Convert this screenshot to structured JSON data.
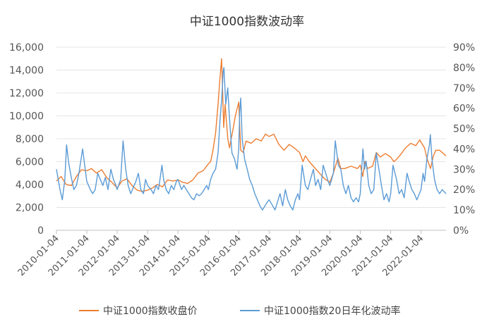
{
  "chart_data": {
    "type": "line",
    "title": "中证1000指数波动率",
    "x_ticks": [
      "2010-01-04",
      "2011-01-04",
      "2012-01-04",
      "2013-01-04",
      "2014-01-04",
      "2015-01-04",
      "2016-01-04",
      "2017-01-04",
      "2018-01-04",
      "2019-01-04",
      "2020-01-04",
      "2021-01-04",
      "2022-01-04"
    ],
    "x_range": [
      "2010-01-04",
      "2022-10-31"
    ],
    "y_left": {
      "ticks": [
        "0",
        "2,000",
        "4,000",
        "6,000",
        "8,000",
        "10,000",
        "12,000",
        "14,000",
        "16,000"
      ],
      "range": [
        0,
        16000
      ]
    },
    "y_right": {
      "ticks": [
        "0%",
        "10%",
        "20%",
        "30%",
        "40%",
        "50%",
        "60%",
        "70%",
        "80%",
        "90%"
      ],
      "range": [
        0,
        0.9
      ]
    },
    "grid": "horizontal",
    "legend_position": "bottom",
    "series": [
      {
        "name": "中证1000指数收盘价",
        "axis": "left",
        "color": "#ED7D31",
        "points": [
          [
            "2010-01-04",
            4300
          ],
          [
            "2010-03-01",
            4700
          ],
          [
            "2010-05-01",
            4000
          ],
          [
            "2010-07-01",
            3900
          ],
          [
            "2010-09-01",
            4700
          ],
          [
            "2010-11-01",
            5300
          ],
          [
            "2011-01-04",
            5200
          ],
          [
            "2011-03-01",
            5400
          ],
          [
            "2011-05-01",
            5000
          ],
          [
            "2011-07-01",
            5300
          ],
          [
            "2011-09-01",
            4600
          ],
          [
            "2011-11-01",
            4200
          ],
          [
            "2012-01-04",
            3700
          ],
          [
            "2012-03-01",
            4300
          ],
          [
            "2012-05-01",
            4500
          ],
          [
            "2012-07-01",
            3900
          ],
          [
            "2012-09-01",
            3500
          ],
          [
            "2012-11-01",
            3400
          ],
          [
            "2013-01-04",
            3500
          ],
          [
            "2013-03-01",
            3700
          ],
          [
            "2013-05-01",
            4000
          ],
          [
            "2013-07-01",
            3800
          ],
          [
            "2013-09-01",
            4400
          ],
          [
            "2013-11-01",
            4300
          ],
          [
            "2014-01-04",
            4400
          ],
          [
            "2014-03-01",
            4200
          ],
          [
            "2014-05-01",
            4100
          ],
          [
            "2014-07-01",
            4400
          ],
          [
            "2014-09-01",
            5000
          ],
          [
            "2014-11-01",
            5200
          ],
          [
            "2015-01-04",
            5800
          ],
          [
            "2015-02-01",
            6000
          ],
          [
            "2015-03-01",
            7000
          ],
          [
            "2015-04-01",
            8500
          ],
          [
            "2015-05-01",
            11000
          ],
          [
            "2015-05-20",
            13000
          ],
          [
            "2015-06-12",
            15000
          ],
          [
            "2015-07-08",
            9000
          ],
          [
            "2015-07-25",
            11000
          ],
          [
            "2015-08-26",
            8000
          ],
          [
            "2015-09-15",
            7200
          ],
          [
            "2015-11-01",
            9000
          ],
          [
            "2015-11-25",
            10000
          ],
          [
            "2016-01-04",
            11200
          ],
          [
            "2016-01-28",
            7000
          ],
          [
            "2016-02-28",
            6800
          ],
          [
            "2016-04-01",
            7800
          ],
          [
            "2016-06-01",
            7600
          ],
          [
            "2016-08-01",
            8000
          ],
          [
            "2016-10-01",
            7800
          ],
          [
            "2016-11-20",
            8400
          ],
          [
            "2017-01-04",
            8200
          ],
          [
            "2017-03-01",
            8400
          ],
          [
            "2017-05-01",
            7500
          ],
          [
            "2017-07-01",
            7000
          ],
          [
            "2017-09-01",
            7500
          ],
          [
            "2017-11-01",
            7200
          ],
          [
            "2018-01-04",
            6800
          ],
          [
            "2018-02-15",
            6000
          ],
          [
            "2018-03-15",
            6500
          ],
          [
            "2018-05-01",
            6000
          ],
          [
            "2018-07-01",
            5500
          ],
          [
            "2018-09-01",
            5000
          ],
          [
            "2018-11-01",
            4500
          ],
          [
            "2019-01-04",
            4200
          ],
          [
            "2019-02-15",
            5000
          ],
          [
            "2019-04-10",
            6300
          ],
          [
            "2019-05-15",
            5400
          ],
          [
            "2019-07-01",
            5400
          ],
          [
            "2019-09-15",
            5600
          ],
          [
            "2019-12-01",
            5400
          ],
          [
            "2020-01-04",
            5700
          ],
          [
            "2020-02-03",
            4700
          ],
          [
            "2020-03-01",
            6000
          ],
          [
            "2020-04-01",
            5400
          ],
          [
            "2020-06-01",
            5600
          ],
          [
            "2020-07-15",
            6800
          ],
          [
            "2020-09-01",
            6400
          ],
          [
            "2020-11-01",
            6700
          ],
          [
            "2021-01-04",
            6400
          ],
          [
            "2021-02-10",
            6000
          ],
          [
            "2021-03-15",
            6200
          ],
          [
            "2021-05-01",
            6600
          ],
          [
            "2021-07-01",
            7200
          ],
          [
            "2021-09-01",
            7600
          ],
          [
            "2021-11-01",
            7400
          ],
          [
            "2021-12-20",
            7900
          ],
          [
            "2022-01-04",
            7700
          ],
          [
            "2022-02-15",
            7200
          ],
          [
            "2022-03-15",
            6300
          ],
          [
            "2022-04-27",
            5400
          ],
          [
            "2022-06-01",
            6500
          ],
          [
            "2022-07-01",
            7000
          ],
          [
            "2022-08-15",
            7000
          ],
          [
            "2022-10-31",
            6500
          ]
        ]
      },
      {
        "name": "中证1000指数20日年化波动率",
        "axis": "right",
        "color": "#5B9BD5",
        "points": [
          [
            "2010-01-04",
            0.3
          ],
          [
            "2010-02-15",
            0.2
          ],
          [
            "2010-03-15",
            0.15
          ],
          [
            "2010-04-15",
            0.25
          ],
          [
            "2010-05-05",
            0.42
          ],
          [
            "2010-06-01",
            0.33
          ],
          [
            "2010-07-01",
            0.26
          ],
          [
            "2010-08-01",
            0.2
          ],
          [
            "2010-09-01",
            0.22
          ],
          [
            "2010-10-01",
            0.28
          ],
          [
            "2010-11-15",
            0.4
          ],
          [
            "2010-12-15",
            0.3
          ],
          [
            "2011-01-04",
            0.24
          ],
          [
            "2011-02-15",
            0.2
          ],
          [
            "2011-03-15",
            0.18
          ],
          [
            "2011-04-15",
            0.2
          ],
          [
            "2011-05-15",
            0.28
          ],
          [
            "2011-06-15",
            0.25
          ],
          [
            "2011-07-15",
            0.22
          ],
          [
            "2011-08-15",
            0.26
          ],
          [
            "2011-09-15",
            0.2
          ],
          [
            "2011-10-20",
            0.3
          ],
          [
            "2011-11-20",
            0.25
          ],
          [
            "2011-12-20",
            0.22
          ],
          [
            "2012-01-04",
            0.2
          ],
          [
            "2012-02-15",
            0.25
          ],
          [
            "2012-03-15",
            0.44
          ],
          [
            "2012-04-15",
            0.3
          ],
          [
            "2012-05-15",
            0.22
          ],
          [
            "2012-06-15",
            0.18
          ],
          [
            "2012-07-15",
            0.21
          ],
          [
            "2012-08-15",
            0.24
          ],
          [
            "2012-09-15",
            0.28
          ],
          [
            "2012-10-15",
            0.2
          ],
          [
            "2012-11-15",
            0.18
          ],
          [
            "2012-12-10",
            0.25
          ],
          [
            "2013-01-04",
            0.22
          ],
          [
            "2013-02-15",
            0.2
          ],
          [
            "2013-03-15",
            0.18
          ],
          [
            "2013-04-15",
            0.22
          ],
          [
            "2013-05-15",
            0.2
          ],
          [
            "2013-06-25",
            0.32
          ],
          [
            "2013-07-15",
            0.25
          ],
          [
            "2013-08-15",
            0.2
          ],
          [
            "2013-09-15",
            0.18
          ],
          [
            "2013-10-15",
            0.22
          ],
          [
            "2013-11-15",
            0.2
          ],
          [
            "2013-12-15",
            0.24
          ],
          [
            "2014-01-04",
            0.25
          ],
          [
            "2014-02-15",
            0.2
          ],
          [
            "2014-03-15",
            0.22
          ],
          [
            "2014-04-15",
            0.2
          ],
          [
            "2014-05-15",
            0.18
          ],
          [
            "2014-06-15",
            0.16
          ],
          [
            "2014-07-15",
            0.15
          ],
          [
            "2014-08-15",
            0.18
          ],
          [
            "2014-09-15",
            0.17
          ],
          [
            "2014-10-15",
            0.18
          ],
          [
            "2014-11-15",
            0.2
          ],
          [
            "2014-12-15",
            0.22
          ],
          [
            "2015-01-04",
            0.2
          ],
          [
            "2015-02-01",
            0.25
          ],
          [
            "2015-03-01",
            0.28
          ],
          [
            "2015-04-01",
            0.3
          ],
          [
            "2015-05-01",
            0.38
          ],
          [
            "2015-05-25",
            0.55
          ],
          [
            "2015-06-15",
            0.65
          ],
          [
            "2015-07-01",
            0.78
          ],
          [
            "2015-07-10",
            0.8
          ],
          [
            "2015-08-01",
            0.62
          ],
          [
            "2015-08-25",
            0.7
          ],
          [
            "2015-09-15",
            0.55
          ],
          [
            "2015-10-15",
            0.38
          ],
          [
            "2015-11-15",
            0.35
          ],
          [
            "2015-12-15",
            0.3
          ],
          [
            "2016-01-04",
            0.4
          ],
          [
            "2016-01-15",
            0.58
          ],
          [
            "2016-01-28",
            0.65
          ],
          [
            "2016-02-15",
            0.45
          ],
          [
            "2016-03-15",
            0.35
          ],
          [
            "2016-04-15",
            0.3
          ],
          [
            "2016-05-15",
            0.25
          ],
          [
            "2016-06-15",
            0.22
          ],
          [
            "2016-07-15",
            0.18
          ],
          [
            "2016-08-15",
            0.15
          ],
          [
            "2016-09-15",
            0.12
          ],
          [
            "2016-10-15",
            0.1
          ],
          [
            "2016-11-15",
            0.12
          ],
          [
            "2016-12-15",
            0.14
          ],
          [
            "2017-01-04",
            0.15
          ],
          [
            "2017-02-15",
            0.12
          ],
          [
            "2017-03-15",
            0.1
          ],
          [
            "2017-04-15",
            0.14
          ],
          [
            "2017-05-15",
            0.18
          ],
          [
            "2017-06-15",
            0.12
          ],
          [
            "2017-07-17",
            0.2
          ],
          [
            "2017-08-15",
            0.15
          ],
          [
            "2017-09-15",
            0.12
          ],
          [
            "2017-10-15",
            0.1
          ],
          [
            "2017-11-15",
            0.15
          ],
          [
            "2017-12-15",
            0.18
          ],
          [
            "2018-01-04",
            0.15
          ],
          [
            "2018-02-05",
            0.32
          ],
          [
            "2018-02-20",
            0.28
          ],
          [
            "2018-03-15",
            0.22
          ],
          [
            "2018-04-15",
            0.2
          ],
          [
            "2018-05-15",
            0.25
          ],
          [
            "2018-06-20",
            0.3
          ],
          [
            "2018-07-15",
            0.22
          ],
          [
            "2018-08-15",
            0.25
          ],
          [
            "2018-09-15",
            0.2
          ],
          [
            "2018-10-15",
            0.32
          ],
          [
            "2018-11-15",
            0.28
          ],
          [
            "2018-12-15",
            0.24
          ],
          [
            "2019-01-04",
            0.22
          ],
          [
            "2019-02-15",
            0.28
          ],
          [
            "2019-03-10",
            0.44
          ],
          [
            "2019-04-15",
            0.32
          ],
          [
            "2019-05-15",
            0.3
          ],
          [
            "2019-06-15",
            0.22
          ],
          [
            "2019-07-15",
            0.18
          ],
          [
            "2019-08-15",
            0.22
          ],
          [
            "2019-09-15",
            0.16
          ],
          [
            "2019-10-15",
            0.14
          ],
          [
            "2019-11-15",
            0.16
          ],
          [
            "2019-12-15",
            0.14
          ],
          [
            "2020-01-04",
            0.18
          ],
          [
            "2020-02-05",
            0.4
          ],
          [
            "2020-02-25",
            0.3
          ],
          [
            "2020-03-15",
            0.34
          ],
          [
            "2020-04-15",
            0.22
          ],
          [
            "2020-05-15",
            0.18
          ],
          [
            "2020-06-15",
            0.2
          ],
          [
            "2020-07-15",
            0.38
          ],
          [
            "2020-08-15",
            0.3
          ],
          [
            "2020-09-15",
            0.22
          ],
          [
            "2020-10-15",
            0.15
          ],
          [
            "2020-11-15",
            0.18
          ],
          [
            "2020-12-15",
            0.14
          ],
          [
            "2021-01-04",
            0.18
          ],
          [
            "2021-02-01",
            0.32
          ],
          [
            "2021-02-25",
            0.28
          ],
          [
            "2021-03-15",
            0.25
          ],
          [
            "2021-04-15",
            0.18
          ],
          [
            "2021-05-15",
            0.2
          ],
          [
            "2021-06-15",
            0.16
          ],
          [
            "2021-07-20",
            0.28
          ],
          [
            "2021-08-15",
            0.24
          ],
          [
            "2021-09-15",
            0.2
          ],
          [
            "2021-10-15",
            0.18
          ],
          [
            "2021-11-15",
            0.15
          ],
          [
            "2021-12-15",
            0.18
          ],
          [
            "2022-01-04",
            0.2
          ],
          [
            "2022-01-28",
            0.28
          ],
          [
            "2022-02-15",
            0.24
          ],
          [
            "2022-03-15",
            0.35
          ],
          [
            "2022-04-15",
            0.42
          ],
          [
            "2022-04-26",
            0.47
          ],
          [
            "2022-05-15",
            0.35
          ],
          [
            "2022-06-15",
            0.25
          ],
          [
            "2022-07-15",
            0.2
          ],
          [
            "2022-08-15",
            0.18
          ],
          [
            "2022-09-15",
            0.2
          ],
          [
            "2022-10-31",
            0.18
          ]
        ]
      }
    ]
  }
}
